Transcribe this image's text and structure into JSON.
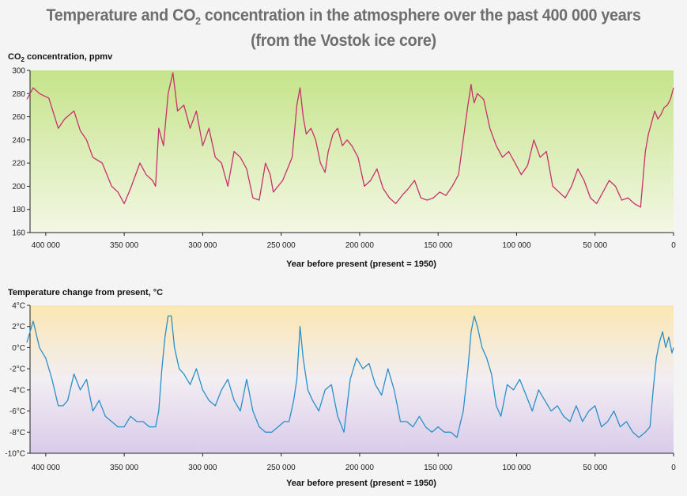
{
  "title": {
    "line1_before": "Temperature and CO",
    "line1_sub": "2",
    "line1_after": " concentration in the atmosphere over the past 400 000 years",
    "line2": "(from the Vostok ice core)"
  },
  "colors": {
    "co2_line": "#c8306e",
    "temp_line": "#2a8fc8",
    "co2_bg_top": "#c5e48a",
    "co2_bg_bottom": "#f3f7e4",
    "temp_bg_top": "#fbe7b2",
    "temp_bg_bottom": "#d9cbea"
  },
  "chart_data": [
    {
      "type": "line",
      "title": "",
      "ylabel": "CO2 concentration, ppmv",
      "ylabel_parts": {
        "before": "CO",
        "sub": "2",
        "after": " concentration, ppmv"
      },
      "xlabel": "Year before present (present = 1950)",
      "xlim": [
        410000,
        0
      ],
      "ylim": [
        160,
        300
      ],
      "x_ticks": [
        400000,
        350000,
        300000,
        250000,
        200000,
        150000,
        100000,
        50000,
        0
      ],
      "x_tick_labels": [
        "400 000",
        "350 000",
        "300 000",
        "250 000",
        "200 000",
        "150 000",
        "100 000",
        "50 000",
        "0"
      ],
      "y_ticks": [
        160,
        180,
        200,
        220,
        240,
        260,
        280,
        300
      ],
      "y_tick_labels": [
        "160",
        "180",
        "200",
        "220",
        "240",
        "260",
        "280",
        "300"
      ],
      "grid": false,
      "series": [
        {
          "x": [
            412000,
            408000,
            404000,
            398000,
            392000,
            388000,
            382000,
            378000,
            374000,
            370000,
            364000,
            358000,
            354000,
            350000,
            346000,
            340000,
            336000,
            332000,
            330000,
            328000,
            325000,
            322000,
            319000,
            316000,
            312000,
            308000,
            304000,
            300000,
            296000,
            292000,
            288000,
            284000,
            280000,
            276000,
            272000,
            268000,
            264000,
            260000,
            257000,
            255000,
            252000,
            249000,
            246000,
            243000,
            240000,
            238000,
            236000,
            234000,
            231000,
            228000,
            225000,
            222000,
            220000,
            217000,
            214000,
            211000,
            208000,
            205000,
            201000,
            197000,
            193000,
            189000,
            185000,
            181000,
            177000,
            173000,
            169000,
            165000,
            161000,
            157000,
            153000,
            149000,
            145000,
            141000,
            137000,
            133000,
            131000,
            129000,
            128000,
            127000,
            125000,
            121000,
            117000,
            113000,
            109000,
            105000,
            101000,
            97000,
            93000,
            89000,
            85000,
            81000,
            77000,
            73000,
            69000,
            65000,
            61000,
            57000,
            53000,
            49000,
            45000,
            41000,
            37000,
            33000,
            29000,
            25000,
            21000,
            18000,
            16000,
            14000,
            12000,
            10000,
            8000,
            6000,
            4000,
            2000,
            0
          ],
          "y": [
            275,
            285,
            280,
            276,
            250,
            258,
            265,
            248,
            240,
            225,
            220,
            200,
            195,
            185,
            198,
            220,
            210,
            205,
            200,
            250,
            235,
            280,
            298,
            265,
            270,
            250,
            265,
            235,
            250,
            225,
            220,
            200,
            230,
            225,
            215,
            190,
            188,
            220,
            210,
            195,
            200,
            205,
            215,
            225,
            270,
            285,
            260,
            245,
            250,
            240,
            220,
            212,
            230,
            245,
            250,
            235,
            240,
            235,
            225,
            200,
            205,
            215,
            198,
            190,
            185,
            192,
            198,
            205,
            190,
            188,
            190,
            195,
            192,
            200,
            210,
            250,
            270,
            288,
            278,
            272,
            280,
            275,
            250,
            235,
            225,
            230,
            220,
            210,
            218,
            240,
            225,
            230,
            200,
            195,
            190,
            200,
            215,
            205,
            190,
            185,
            195,
            205,
            200,
            188,
            190,
            185,
            182,
            230,
            245,
            255,
            265,
            258,
            262,
            268,
            270,
            275,
            285
          ]
        }
      ]
    },
    {
      "type": "line",
      "title": "",
      "ylabel": "Temperature change from present, °C",
      "xlabel": "Year before present (present = 1950)",
      "xlim": [
        410000,
        0
      ],
      "ylim": [
        -10,
        4
      ],
      "x_ticks": [
        400000,
        350000,
        300000,
        250000,
        200000,
        150000,
        100000,
        50000,
        0
      ],
      "x_tick_labels": [
        "400 000",
        "350 000",
        "300 000",
        "250 000",
        "200 000",
        "150 000",
        "100 000",
        "50 000",
        "0"
      ],
      "y_ticks": [
        4,
        2,
        0,
        -2,
        -4,
        -6,
        -8,
        -10
      ],
      "y_tick_labels": [
        "4°C",
        "2°C",
        "0°C",
        "-2°C",
        "-4°C",
        "-6°C",
        "-8°C",
        "-10°C"
      ],
      "grid": false,
      "series": [
        {
          "x": [
            412000,
            408000,
            404000,
            400000,
            396000,
            392000,
            389000,
            386000,
            382000,
            378000,
            374000,
            370000,
            366000,
            362000,
            358000,
            354000,
            350000,
            346000,
            342000,
            338000,
            334000,
            330000,
            328000,
            326000,
            324000,
            322000,
            320000,
            318000,
            315000,
            312000,
            308000,
            304000,
            300000,
            296000,
            292000,
            288000,
            284000,
            280000,
            276000,
            272000,
            268000,
            264000,
            260000,
            256000,
            252000,
            248000,
            245000,
            242000,
            240000,
            238000,
            236000,
            233000,
            230000,
            226000,
            222000,
            218000,
            214000,
            210000,
            206000,
            202000,
            198000,
            194000,
            190000,
            186000,
            182000,
            178000,
            174000,
            170000,
            166000,
            162000,
            158000,
            154000,
            150000,
            146000,
            142000,
            138000,
            134000,
            131000,
            129000,
            127000,
            125000,
            122000,
            119000,
            116000,
            113000,
            110000,
            106000,
            102000,
            98000,
            94000,
            90000,
            86000,
            82000,
            78000,
            74000,
            70000,
            66000,
            62000,
            58000,
            54000,
            50000,
            46000,
            42000,
            38000,
            34000,
            30000,
            26000,
            22000,
            18000,
            15000,
            13000,
            11000,
            9000,
            7000,
            5000,
            3000,
            1000,
            0
          ],
          "y": [
            0.5,
            2.5,
            0,
            -1,
            -3,
            -5.5,
            -5.5,
            -5,
            -2.5,
            -4,
            -3,
            -6,
            -5,
            -6.5,
            -7,
            -7.5,
            -7.5,
            -6.5,
            -7,
            -7,
            -7.5,
            -7.5,
            -6,
            -2,
            1,
            3,
            3,
            0,
            -2,
            -2.5,
            -3.5,
            -2,
            -4,
            -5,
            -5.5,
            -4,
            -3,
            -5,
            -6,
            -3,
            -6,
            -7.5,
            -8,
            -8,
            -7.5,
            -7,
            -7,
            -5,
            -3,
            2,
            -1,
            -4,
            -5,
            -6,
            -4,
            -3.5,
            -6.5,
            -8,
            -3,
            -1,
            -2,
            -1.5,
            -3.5,
            -4.5,
            -2,
            -4,
            -7,
            -7,
            -7.5,
            -6.5,
            -7.5,
            -8,
            -7.5,
            -8,
            -8,
            -8.5,
            -6,
            -2,
            1.5,
            3,
            2,
            0,
            -1,
            -2.5,
            -5.5,
            -6.5,
            -3.5,
            -4,
            -3,
            -4.5,
            -6,
            -4,
            -5,
            -6,
            -5.5,
            -6.5,
            -7,
            -5.5,
            -7,
            -6,
            -5.5,
            -7.5,
            -7,
            -6,
            -7.5,
            -7,
            -8,
            -8.5,
            -8,
            -7.5,
            -4,
            -1,
            0.5,
            1.5,
            0,
            1,
            -0.5,
            0
          ]
        }
      ]
    }
  ]
}
